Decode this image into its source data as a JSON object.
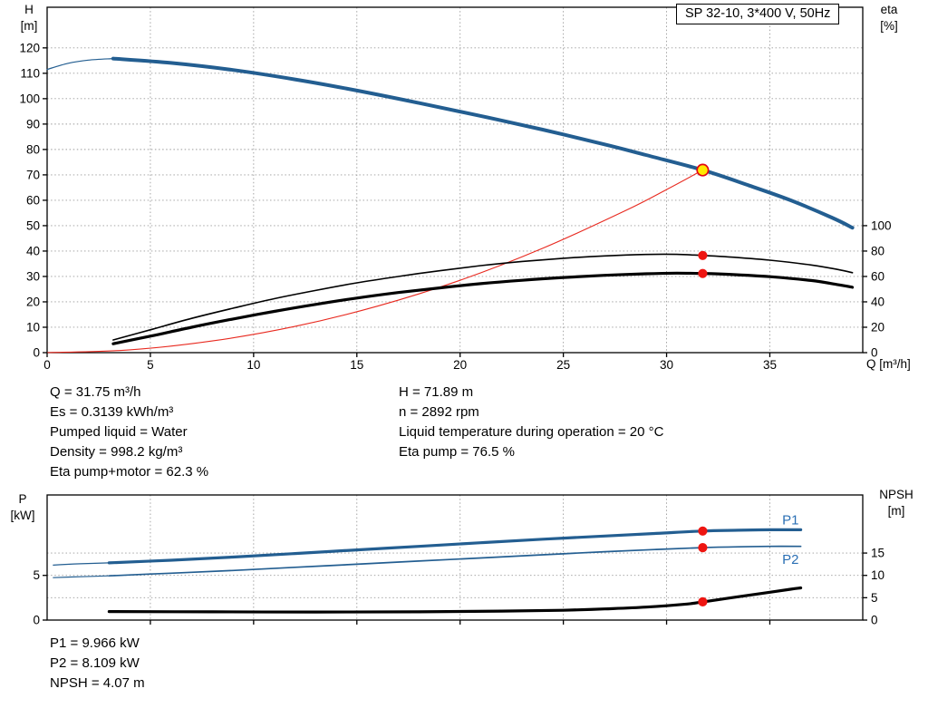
{
  "colors": {
    "curve_blue": "#235e91",
    "curve_black": "#000000",
    "curve_red": "#e8291f",
    "dot_red": "#ee1511",
    "duty_fill": "#ffe800",
    "duty_ring": "#e30613",
    "series_label_blue": "#2a6fb4",
    "grid": "#9b9b9b",
    "frame": "#000000"
  },
  "operating_point_info": {
    "left_column": [
      "Q = 31.75 m³/h",
      "Es = 0.3139 kWh/m³",
      "Pumped liquid = Water",
      "Density = 998.2 kg/m³",
      "Eta pump+motor = 62.3 %"
    ],
    "right_column": [
      "H = 71.89 m",
      "n = 2892 rpm",
      "Liquid temperature during operation = 20 °C",
      "Eta pump = 76.5 %"
    ]
  },
  "power_info": [
    "P1 = 9.966 kW",
    "P2 = 8.109 kW",
    "NPSH = 4.07 m"
  ],
  "chart_data": [
    {
      "name": "qh-eta-chart",
      "type": "line",
      "title": "SP 32-10, 3*400 V, 50Hz",
      "x_axis": {
        "label": "Q [m³/h]",
        "min": 0,
        "max": 39.5,
        "ticks": [
          0,
          5,
          10,
          15,
          20,
          25,
          30,
          35
        ],
        "grid": [
          5,
          10,
          15,
          20,
          25,
          30,
          35
        ],
        "show_labels": true
      },
      "y_left": {
        "label_line1": "H",
        "label_line2": "[m]",
        "min": 0,
        "max": 136,
        "ticks": [
          0,
          10,
          20,
          30,
          40,
          50,
          60,
          70,
          80,
          90,
          100,
          110,
          120
        ],
        "grid": [
          10,
          20,
          30,
          40,
          50,
          60,
          70,
          80,
          90,
          100,
          110,
          120
        ]
      },
      "y_right": {
        "label_line1": "eta",
        "label_line2": "[%]",
        "min": 0,
        "max": 272,
        "ticks": [
          0,
          20,
          40,
          60,
          80,
          100
        ],
        "grid": []
      },
      "series": [
        {
          "name": "system-curve",
          "axis": "left",
          "color": "curve_red",
          "width": 1.1,
          "points": [
            [
              0,
              0
            ],
            [
              4,
              1.1
            ],
            [
              8,
              4.6
            ],
            [
              12,
              10.3
            ],
            [
              16,
              18.3
            ],
            [
              20,
              28.5
            ],
            [
              24,
              41.1
            ],
            [
              28,
              55.9
            ],
            [
              30,
              64.2
            ],
            [
              31.75,
              71.89
            ]
          ]
        },
        {
          "name": "eta-pump-curve",
          "axis": "right",
          "color": "curve_black",
          "width": 1.6,
          "points": [
            [
              3.2,
              10
            ],
            [
              5,
              18
            ],
            [
              7,
              27
            ],
            [
              9,
              35
            ],
            [
              11,
              42.5
            ],
            [
              13,
              49
            ],
            [
              15,
              55
            ],
            [
              17,
              60
            ],
            [
              19,
              64.5
            ],
            [
              21,
              68.5
            ],
            [
              23,
              71.8
            ],
            [
              25,
              74.3
            ],
            [
              27,
              76.2
            ],
            [
              29,
              77.3
            ],
            [
              30.5,
              77.4
            ],
            [
              31.75,
              76.5
            ],
            [
              33,
              75.4
            ],
            [
              35,
              72.8
            ],
            [
              37,
              69
            ],
            [
              38.3,
              65.5
            ],
            [
              39,
              63
            ]
          ]
        },
        {
          "name": "eta-pump-motor-curve",
          "axis": "right",
          "color": "curve_black",
          "width": 3.2,
          "points": [
            [
              3.2,
              7
            ],
            [
              5,
              13
            ],
            [
              7,
              20
            ],
            [
              9,
              26.5
            ],
            [
              11,
              32.5
            ],
            [
              13,
              38
            ],
            [
              15,
              43
            ],
            [
              17,
              47.3
            ],
            [
              19,
              51
            ],
            [
              21,
              54.3
            ],
            [
              23,
              57
            ],
            [
              25,
              59.2
            ],
            [
              27,
              60.9
            ],
            [
              29,
              62.1
            ],
            [
              30.5,
              62.6
            ],
            [
              31.75,
              62.3
            ],
            [
              33,
              61.7
            ],
            [
              35,
              59.8
            ],
            [
              37,
              56.8
            ],
            [
              38.3,
              53.5
            ],
            [
              39,
              51.5
            ]
          ]
        },
        {
          "name": "qh-curve-lowflow",
          "axis": "left",
          "color": "curve_blue",
          "width": 1.2,
          "points": [
            [
              0,
              111.5
            ],
            [
              1,
              113.9
            ],
            [
              2,
              115.2
            ],
            [
              3.2,
              115.8
            ]
          ]
        },
        {
          "name": "qh-curve",
          "axis": "left",
          "color": "curve_blue",
          "width": 4,
          "points": [
            [
              3.2,
              115.8
            ],
            [
              6,
              114.1
            ],
            [
              9,
              111.3
            ],
            [
              12,
              107.6
            ],
            [
              15,
              103.2
            ],
            [
              18,
              98.3
            ],
            [
              21,
              93.2
            ],
            [
              24,
              87.8
            ],
            [
              27,
              82
            ],
            [
              29,
              77.8
            ],
            [
              31.75,
              71.89
            ],
            [
              34,
              65.8
            ],
            [
              36,
              60
            ],
            [
              38,
              53.2
            ],
            [
              39,
              49.2
            ]
          ]
        }
      ],
      "markers": [
        {
          "name": "eta-pump-point",
          "axis": "right",
          "x": 31.75,
          "y": 76.5,
          "style": "dot"
        },
        {
          "name": "eta-pump-motor-point",
          "axis": "right",
          "x": 31.75,
          "y": 62.3,
          "style": "dot"
        },
        {
          "name": "duty-point",
          "axis": "left",
          "x": 31.75,
          "y": 71.89,
          "style": "duty"
        }
      ],
      "series_labels": []
    },
    {
      "name": "power-npsh-chart",
      "type": "line",
      "x_axis": {
        "label": "",
        "min": 0,
        "max": 39.5,
        "ticks": [
          5,
          10,
          15,
          20,
          25,
          30,
          35
        ],
        "grid": [
          5,
          10,
          15,
          20,
          25,
          30,
          35
        ],
        "show_labels": false
      },
      "y_left": {
        "label_line1": "P",
        "label_line2": "[kW]",
        "min": 0,
        "max": 14,
        "ticks": [
          0,
          5
        ],
        "grid": []
      },
      "y_right": {
        "label_line1": "NPSH",
        "label_line2": "[m]",
        "min": 0,
        "max": 28,
        "ticks": [
          0,
          5,
          10,
          15
        ],
        "grid": [
          5,
          10,
          15
        ]
      },
      "series": [
        {
          "name": "p1-curve-lowflow",
          "axis": "left",
          "color": "curve_blue",
          "width": 1.2,
          "points": [
            [
              0.3,
              6.15
            ],
            [
              1.6,
              6.3
            ],
            [
              3,
              6.4
            ]
          ]
        },
        {
          "name": "p2-curve-lowflow",
          "axis": "left",
          "color": "curve_blue",
          "width": 1.2,
          "points": [
            [
              0.3,
              4.75
            ],
            [
              1.6,
              4.85
            ],
            [
              3,
              4.95
            ]
          ]
        },
        {
          "name": "p1-curve",
          "axis": "left",
          "color": "curve_blue",
          "width": 3.2,
          "points": [
            [
              3,
              6.4
            ],
            [
              6,
              6.7
            ],
            [
              9,
              7.05
            ],
            [
              12,
              7.45
            ],
            [
              15,
              7.85
            ],
            [
              18,
              8.25
            ],
            [
              21,
              8.65
            ],
            [
              24,
              9.05
            ],
            [
              27,
              9.4
            ],
            [
              29.5,
              9.7
            ],
            [
              31.75,
              9.966
            ],
            [
              33.5,
              10.05
            ],
            [
              35,
              10.1
            ],
            [
              36.5,
              10.1
            ]
          ]
        },
        {
          "name": "p2-curve",
          "axis": "left",
          "color": "curve_blue",
          "width": 1.7,
          "points": [
            [
              3,
              4.95
            ],
            [
              6,
              5.25
            ],
            [
              9,
              5.55
            ],
            [
              12,
              5.9
            ],
            [
              15,
              6.25
            ],
            [
              18,
              6.6
            ],
            [
              21,
              6.95
            ],
            [
              24,
              7.3
            ],
            [
              27,
              7.65
            ],
            [
              29.5,
              7.9
            ],
            [
              31.75,
              8.109
            ],
            [
              33.5,
              8.2
            ],
            [
              35,
              8.25
            ],
            [
              36.5,
              8.25
            ]
          ]
        },
        {
          "name": "npsh-curve",
          "axis": "right",
          "color": "curve_black",
          "width": 3.2,
          "points": [
            [
              3,
              1.9
            ],
            [
              8,
              1.85
            ],
            [
              13,
              1.8
            ],
            [
              18,
              1.85
            ],
            [
              22,
              2.0
            ],
            [
              25,
              2.2
            ],
            [
              27,
              2.5
            ],
            [
              29,
              2.9
            ],
            [
              31,
              3.6
            ],
            [
              31.75,
              4.07
            ],
            [
              33,
              4.9
            ],
            [
              34.5,
              5.9
            ],
            [
              36,
              6.9
            ],
            [
              36.5,
              7.2
            ]
          ]
        }
      ],
      "markers": [
        {
          "name": "p1-point",
          "axis": "left",
          "x": 31.75,
          "y": 9.966,
          "style": "dot"
        },
        {
          "name": "p2-point",
          "axis": "left",
          "x": 31.75,
          "y": 8.109,
          "style": "dot"
        },
        {
          "name": "npsh-point",
          "axis": "right",
          "x": 31.75,
          "y": 4.07,
          "style": "dot"
        }
      ],
      "series_labels": [
        {
          "text": "P1",
          "axis": "left",
          "x": 35.6,
          "y": 10.7
        },
        {
          "text": "P2",
          "axis": "left",
          "x": 35.6,
          "y": 6.3
        }
      ]
    }
  ]
}
